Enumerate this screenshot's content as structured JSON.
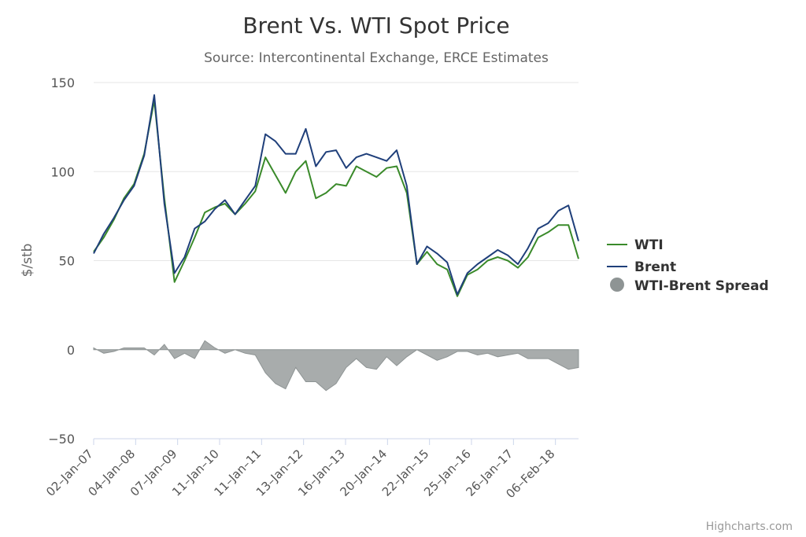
{
  "chart_data": {
    "type": "line",
    "title": "Brent Vs. WTI Spot Price",
    "subtitle": "Source: Intercontinental Exchange, ERCE Estimates",
    "ylabel": "$/stb",
    "ylim": [
      -50,
      150
    ],
    "yticks": [
      150,
      100,
      50,
      0,
      -50
    ],
    "grid": true,
    "x_tick_labels": [
      "02-Jan-07",
      "04-Jan-08",
      "07-Jan-09",
      "11-Jan-10",
      "11-Jan-11",
      "13-Jan-12",
      "16-Jan-13",
      "20-Jan-14",
      "22-Jan-15",
      "25-Jan-16",
      "26-Jan-17",
      "06-Feb-18"
    ],
    "x": [
      "2007-01",
      "2007-04",
      "2007-07",
      "2007-10",
      "2008-01",
      "2008-04",
      "2008-07",
      "2008-10",
      "2009-01",
      "2009-04",
      "2009-07",
      "2009-10",
      "2010-01",
      "2010-04",
      "2010-07",
      "2010-10",
      "2011-01",
      "2011-04",
      "2011-07",
      "2011-10",
      "2012-01",
      "2012-04",
      "2012-07",
      "2012-10",
      "2013-01",
      "2013-04",
      "2013-07",
      "2013-10",
      "2014-01",
      "2014-04",
      "2014-07",
      "2014-10",
      "2015-01",
      "2015-04",
      "2015-07",
      "2015-10",
      "2016-01",
      "2016-04",
      "2016-07",
      "2016-10",
      "2017-01",
      "2017-04",
      "2017-07",
      "2017-10",
      "2018-01",
      "2018-04",
      "2018-07",
      "2018-10",
      "2018-12"
    ],
    "series": [
      {
        "name": "WTI",
        "color": "#3a8a2a",
        "kind": "line",
        "values": [
          55,
          63,
          73,
          85,
          93,
          110,
          140,
          85,
          38,
          50,
          63,
          77,
          80,
          82,
          76,
          82,
          89,
          108,
          98,
          88,
          100,
          106,
          85,
          88,
          93,
          92,
          103,
          100,
          97,
          102,
          103,
          88,
          48,
          55,
          48,
          45,
          30,
          42,
          45,
          50,
          52,
          50,
          46,
          52,
          63,
          66,
          70,
          70,
          51
        ]
      },
      {
        "name": "Brent",
        "color": "#1f3f7a",
        "kind": "line",
        "values": [
          54,
          65,
          74,
          84,
          92,
          109,
          143,
          82,
          43,
          52,
          68,
          72,
          79,
          84,
          76,
          84,
          92,
          121,
          117,
          110,
          110,
          124,
          103,
          111,
          112,
          102,
          108,
          110,
          108,
          106,
          112,
          92,
          48,
          58,
          54,
          49,
          31,
          43,
          48,
          52,
          56,
          53,
          48,
          57,
          68,
          71,
          78,
          81,
          61
        ]
      },
      {
        "name": "WTI-Brent Spread",
        "color": "#9ea3a3",
        "kind": "area",
        "values": [
          1,
          -2,
          -1,
          1,
          1,
          1,
          -3,
          3,
          -5,
          -2,
          -5,
          5,
          1,
          -2,
          0,
          -2,
          -3,
          -13,
          -19,
          -22,
          -10,
          -18,
          -18,
          -23,
          -19,
          -10,
          -5,
          -10,
          -11,
          -4,
          -9,
          -4,
          0,
          -3,
          -6,
          -4,
          -1,
          -1,
          -3,
          -2,
          -4,
          -3,
          -2,
          -5,
          -5,
          -5,
          -8,
          -11,
          -10
        ]
      }
    ],
    "legend": {
      "position": "right"
    }
  },
  "credits": "Highcharts.com"
}
